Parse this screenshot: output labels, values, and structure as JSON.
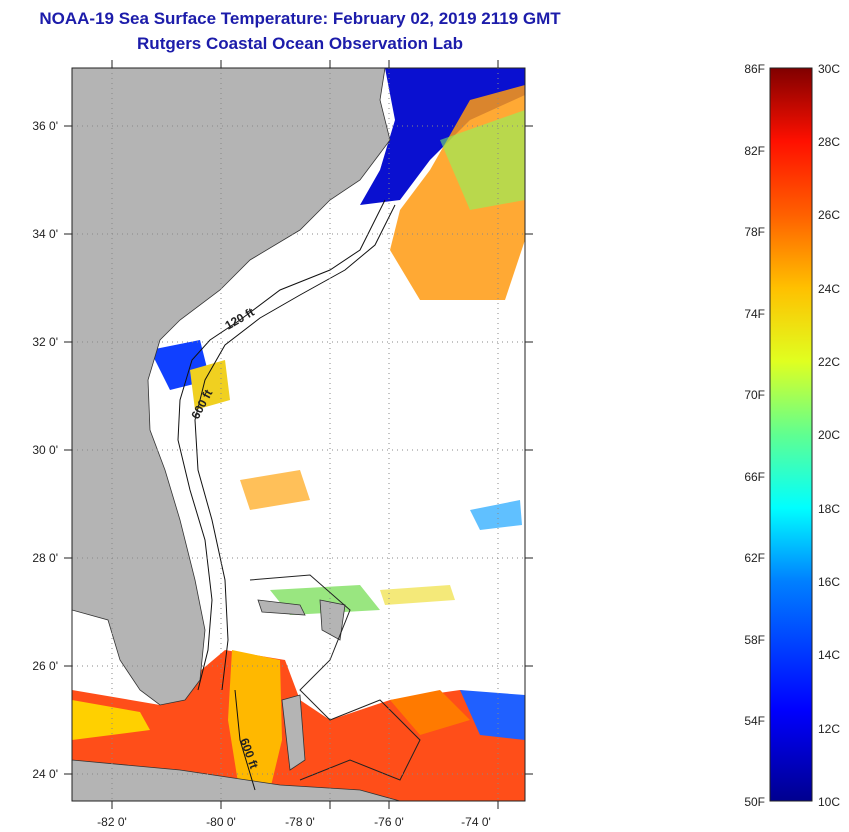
{
  "title": "NOAA-19 Sea Surface Temperature:  February 02, 2019 2119 GMT",
  "subtitle": "Rutgers Coastal Ocean Observation Lab",
  "map": {
    "lat_ticks": [
      "36 0'",
      "34 0'",
      "32 0'",
      "30 0'",
      "28 0'",
      "26 0'",
      "24 0'"
    ],
    "lon_ticks": [
      "-82 0'",
      "-80 0'",
      "-78 0'",
      "-76 0'",
      "-74 0'"
    ],
    "isobath_labels": [
      "120 ft",
      "600 ft",
      "600 ft"
    ],
    "colors": {
      "land": "#b4b4b4",
      "ocean_nodata": "#ffffff",
      "grid": "#888888"
    }
  },
  "colorbar": {
    "fahrenheit": [
      "86F",
      "82F",
      "78F",
      "74F",
      "70F",
      "66F",
      "62F",
      "58F",
      "54F",
      "50F"
    ],
    "celsius": [
      "30C",
      "28C",
      "26C",
      "24C",
      "22C",
      "20C",
      "18C",
      "16C",
      "14C",
      "12C",
      "10C"
    ]
  }
}
